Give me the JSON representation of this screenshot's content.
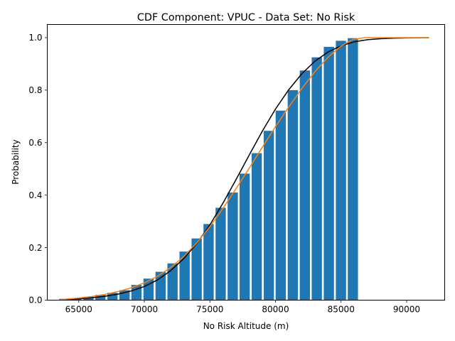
{
  "chart_data": {
    "type": "bar",
    "title": "CDF Component: VPUC - Data Set: No Risk",
    "xlabel": "No Risk Altitude (m)",
    "ylabel": "Probability",
    "xlim": [
      62600,
      92900
    ],
    "ylim": [
      0,
      1.05
    ],
    "xticks": [
      65000,
      70000,
      75000,
      80000,
      85000,
      90000
    ],
    "xtick_labels": [
      "65000",
      "70000",
      "75000",
      "80000",
      "85000",
      "90000"
    ],
    "yticks": [
      0.0,
      0.2,
      0.4,
      0.6,
      0.8,
      1.0
    ],
    "ytick_labels": [
      "0.0",
      "0.2",
      "0.4",
      "0.6",
      "0.8",
      "1.0"
    ],
    "grid": false,
    "bar_color": "#1f77b4",
    "bar_width": 780,
    "bars": {
      "x": [
        63900,
        64820,
        65740,
        66650,
        67570,
        68490,
        69400,
        70320,
        71240,
        72150,
        73070,
        73990,
        74900,
        75820,
        76740,
        77650,
        78570,
        79490,
        80400,
        81320,
        82240,
        83150,
        84070,
        84990,
        85900
      ],
      "values": [
        0.005,
        0.008,
        0.013,
        0.02,
        0.028,
        0.038,
        0.058,
        0.082,
        0.108,
        0.14,
        0.185,
        0.235,
        0.29,
        0.352,
        0.41,
        0.482,
        0.56,
        0.645,
        0.722,
        0.8,
        0.875,
        0.925,
        0.965,
        0.988,
        0.998
      ]
    },
    "series": [
      {
        "color": "#000000",
        "x": [
          63600,
          65000,
          66000,
          67000,
          68000,
          69000,
          70000,
          71000,
          72000,
          73000,
          74000,
          75000,
          76000,
          77000,
          78000,
          79000,
          80000,
          81000,
          82000,
          83000,
          84000,
          85000,
          86000,
          87000,
          88000,
          89000,
          90000,
          91700
        ],
        "values": [
          0.002,
          0.005,
          0.009,
          0.015,
          0.023,
          0.035,
          0.052,
          0.077,
          0.112,
          0.158,
          0.216,
          0.287,
          0.37,
          0.46,
          0.553,
          0.644,
          0.728,
          0.801,
          0.862,
          0.91,
          0.945,
          0.969,
          0.984,
          0.992,
          0.996,
          0.998,
          0.999,
          1.0
        ]
      },
      {
        "color": "#ff7f0e",
        "x": [
          63600,
          65000,
          66000,
          67000,
          68000,
          69000,
          70000,
          71000,
          72000,
          73000,
          74000,
          75000,
          76000,
          77000,
          78000,
          79000,
          80000,
          81000,
          82000,
          83000,
          84000,
          85000,
          85900,
          86800,
          87500,
          91700
        ],
        "values": [
          0.002,
          0.008,
          0.014,
          0.022,
          0.033,
          0.047,
          0.066,
          0.091,
          0.124,
          0.166,
          0.218,
          0.28,
          0.35,
          0.425,
          0.503,
          0.583,
          0.661,
          0.735,
          0.806,
          0.87,
          0.925,
          0.968,
          0.993,
          1.0,
          1.0,
          1.0
        ]
      }
    ]
  }
}
